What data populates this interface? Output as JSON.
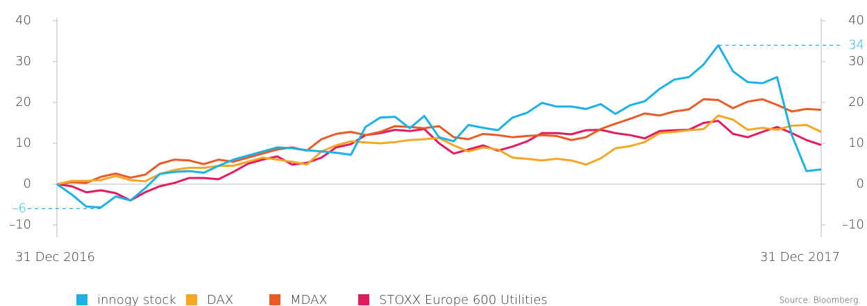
{
  "chart_data": {
    "type": "line",
    "categories": [
      "31 Dec 2016",
      null,
      null,
      null,
      null,
      null,
      null,
      null,
      null,
      null,
      null,
      null,
      null,
      null,
      null,
      null,
      null,
      null,
      null,
      null,
      null,
      null,
      null,
      null,
      null,
      null,
      null,
      null,
      null,
      null,
      null,
      null,
      null,
      null,
      null,
      null,
      null,
      null,
      null,
      null,
      null,
      null,
      null,
      null,
      null,
      null,
      null,
      null,
      null,
      null,
      null,
      null,
      "31 Dec 2017"
    ],
    "series": [
      {
        "name": "innogy stock",
        "color": "#1ab0e8",
        "values": [
          0,
          -2.5,
          -5.5,
          -5.7,
          -3,
          -4,
          -1,
          2.5,
          3,
          3.2,
          2.8,
          4.5,
          6,
          7,
          8,
          9,
          8.8,
          8.3,
          8,
          7.7,
          7.2,
          14,
          16.3,
          16.5,
          13.7,
          16.7,
          11.5,
          10.5,
          14.5,
          13.8,
          13.2,
          16.3,
          17.5,
          19.9,
          19,
          19,
          18.4,
          19.6,
          17.2,
          19.3,
          20.3,
          23.3,
          25.6,
          26.2,
          29.3,
          34,
          27.6,
          25,
          24.7,
          26.2,
          12,
          3.2,
          3.6
        ]
      },
      {
        "name": "DAX",
        "color": "#f5a623",
        "values": [
          0,
          0.8,
          0.8,
          1,
          2,
          1,
          0.7,
          2.5,
          3.5,
          4,
          4,
          4.5,
          4.5,
          5.5,
          6.5,
          6,
          5.5,
          4.8,
          8,
          9.5,
          10.5,
          10.2,
          10,
          10.3,
          10.8,
          11,
          11.3,
          9.5,
          8,
          9,
          8.5,
          6.5,
          6.2,
          5.8,
          6.2,
          5.8,
          4.8,
          6.3,
          8.8,
          9.3,
          10.3,
          12.5,
          12.8,
          13.2,
          13.5,
          16.8,
          15.8,
          13.3,
          13.8,
          13.3,
          14.3,
          14.5,
          12.8
        ]
      },
      {
        "name": "MDAX",
        "color": "#eb5a24",
        "values": [
          0,
          0.5,
          0.3,
          1.8,
          2.6,
          1.6,
          2.3,
          5,
          6,
          5.8,
          4.9,
          6,
          5.5,
          6.5,
          7.5,
          8.5,
          9,
          8.2,
          11,
          12.3,
          12.8,
          12,
          12.8,
          14.2,
          14,
          13.7,
          14.2,
          11.5,
          11,
          12.3,
          12,
          11.5,
          11.8,
          12,
          11.8,
          10.8,
          11.5,
          13.5,
          14.8,
          16,
          17.3,
          16.8,
          17.8,
          18.3,
          20.8,
          20.6,
          18.6,
          20.2,
          20.8,
          19.4,
          17.8,
          18.4,
          18.2
        ]
      },
      {
        "name": "STOXX Europe 600 Utilities",
        "color": "#e5195e",
        "values": [
          0,
          -0.5,
          -2,
          -1.5,
          -2.2,
          -4,
          -2,
          -0.5,
          0.3,
          1.5,
          1.5,
          1.2,
          3,
          5,
          6,
          6.8,
          4.8,
          5.2,
          6.5,
          9,
          9.8,
          12,
          12.5,
          13.3,
          13,
          13.5,
          10,
          7.5,
          8.5,
          9.5,
          8.2,
          9.2,
          10.5,
          12.5,
          12.5,
          12.2,
          13.2,
          13.3,
          12.5,
          12,
          11.2,
          13,
          13.2,
          13.3,
          15,
          15.5,
          12.3,
          11.5,
          12.8,
          14,
          12.5,
          10.8,
          9.6
        ]
      }
    ],
    "ylim": [
      -13,
      40
    ],
    "yticks": [
      {
        "value": -10,
        "label": "–10"
      },
      0,
      10,
      20,
      30,
      40
    ],
    "y2lim": [
      -13,
      40
    ],
    "y2ticks": [
      {
        "value": -10,
        "label": "–10"
      },
      0,
      10,
      20,
      30,
      40
    ],
    "annotations": [
      {
        "value": 34,
        "label": "34"
      },
      {
        "value": -6,
        "label": "–6"
      }
    ],
    "source": "Source: Bloomberg."
  }
}
